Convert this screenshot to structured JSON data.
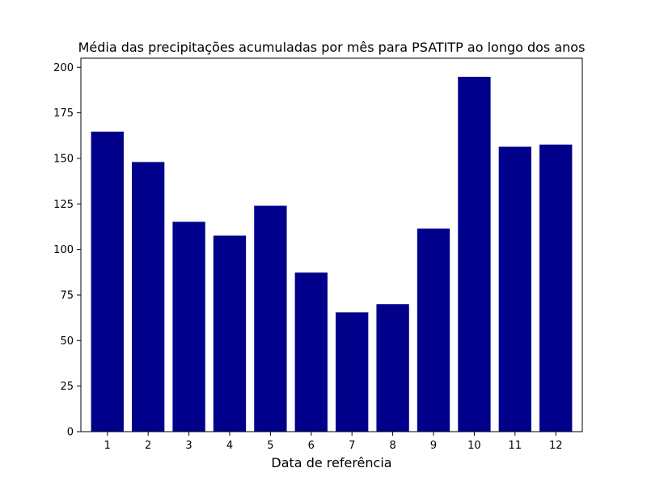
{
  "chart_data": {
    "type": "bar",
    "title": "Média das precipitações acumuladas por mês para PSATITP ao longo dos anos",
    "xlabel": "Data de referência",
    "ylabel": "",
    "categories": [
      "1",
      "2",
      "3",
      "4",
      "5",
      "6",
      "7",
      "8",
      "9",
      "10",
      "11",
      "12"
    ],
    "values": [
      164.7,
      148.0,
      115.2,
      107.6,
      124.0,
      87.3,
      65.5,
      70.0,
      111.5,
      194.8,
      156.4,
      157.6
    ],
    "ylim": [
      0,
      205
    ],
    "yticks": [
      "0",
      "25",
      "50",
      "75",
      "100",
      "125",
      "150",
      "175",
      "200"
    ],
    "bar_color": "#00008b",
    "grid": false,
    "legend": "none"
  }
}
